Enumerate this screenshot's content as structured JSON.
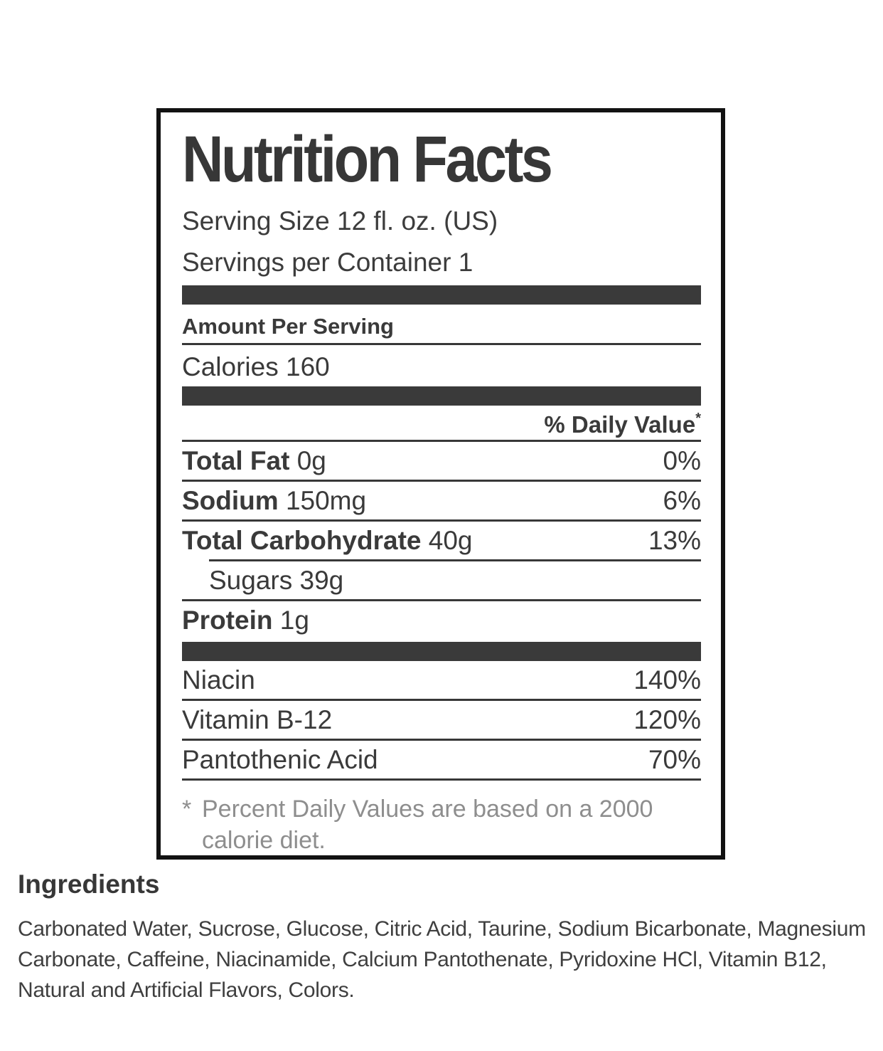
{
  "nutrition_label": {
    "title": "Nutrition Facts",
    "serving_size": "Serving Size 12 fl. oz. (US)",
    "servings_per_container": "Servings per Container 1",
    "amount_per_serving": "Amount Per Serving",
    "calories": {
      "label": "Calories",
      "value": "160"
    },
    "daily_value_header": {
      "text": "% Daily Value",
      "asterisk": "*"
    },
    "nutrient_rows": [
      {
        "name": "Total Fat",
        "amount": "0g",
        "daily_value": "0%"
      },
      {
        "name": "Sodium",
        "amount": "150mg",
        "daily_value": "6%"
      },
      {
        "name": "Total Carbohydrate",
        "amount": "40g",
        "daily_value": "13%"
      },
      {
        "name": "Sugars",
        "amount": "39g",
        "daily_value": ""
      },
      {
        "name": "Protein",
        "amount": "1g",
        "daily_value": ""
      }
    ],
    "vitamin_rows": [
      {
        "name": "Niacin",
        "daily_value": "140%"
      },
      {
        "name": "Vitamin B-12",
        "daily_value": "120%"
      },
      {
        "name": "Pantothenic Acid",
        "daily_value": "70%"
      }
    ],
    "footnote": {
      "marker": "*",
      "text": "Percent Daily Values are based on a 2000 calorie diet."
    }
  },
  "ingredients_section": {
    "heading": "Ingredients",
    "text": "Carbonated Water, Sucrose, Glucose, Citric Acid, Taurine, Sodium Bicarbonate, Magnesium Carbonate, Caffeine, Niacinamide, Calcium Pantothenate, Pyridoxine HCl, Vitamin B12, Natural and Artificial Flavors, Colors."
  },
  "colors": {
    "text": "#3a3a3a",
    "bar": "#3a3a3a",
    "border": "#121212",
    "footnote_gray": "#8e8e8e",
    "background": "#ffffff"
  }
}
